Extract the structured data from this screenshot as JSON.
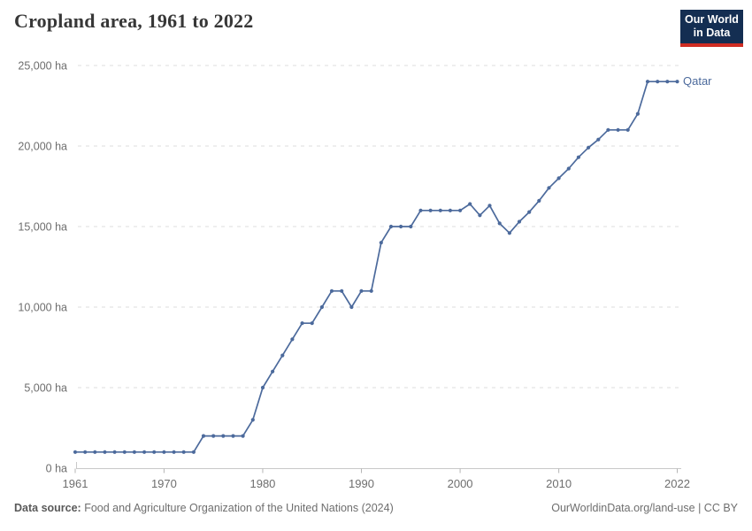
{
  "header": {
    "title": "Cropland area, 1961 to 2022",
    "logo": {
      "line1": "Our World",
      "line2": "in Data"
    }
  },
  "chart_data": {
    "type": "line",
    "title": "Cropland area, 1961 to 2022",
    "unit": "ha",
    "xlim": [
      1961,
      2022
    ],
    "ylim": [
      0,
      25000
    ],
    "grid": "horizontal-dashed",
    "legend_position": "entity label at right end of line",
    "xticks": [
      1961,
      1970,
      1980,
      1990,
      2000,
      2010,
      2022
    ],
    "yticks": [
      0,
      5000,
      10000,
      15000,
      20000,
      25000
    ],
    "ytick_labels": [
      "0 ha",
      "5,000 ha",
      "10,000 ha",
      "15,000 ha",
      "20,000 ha",
      "25,000 ha"
    ],
    "series": [
      {
        "name": "Qatar",
        "color": "#4C6A9C",
        "x": [
          1961,
          1962,
          1963,
          1964,
          1965,
          1966,
          1967,
          1968,
          1969,
          1970,
          1971,
          1972,
          1973,
          1974,
          1975,
          1976,
          1977,
          1978,
          1979,
          1980,
          1981,
          1982,
          1983,
          1984,
          1985,
          1986,
          1987,
          1988,
          1989,
          1990,
          1991,
          1992,
          1993,
          1994,
          1995,
          1996,
          1997,
          1998,
          1999,
          2000,
          2001,
          2002,
          2003,
          2004,
          2005,
          2006,
          2007,
          2008,
          2009,
          2010,
          2011,
          2012,
          2013,
          2014,
          2015,
          2016,
          2017,
          2018,
          2019,
          2020,
          2021,
          2022
        ],
        "values": [
          1000,
          1000,
          1000,
          1000,
          1000,
          1000,
          1000,
          1000,
          1000,
          1000,
          1000,
          1000,
          1000,
          2000,
          2000,
          2000,
          2000,
          2000,
          3000,
          5000,
          6000,
          7000,
          8000,
          9000,
          9000,
          10000,
          11000,
          11000,
          10000,
          11000,
          11000,
          14000,
          15000,
          15000,
          15000,
          16000,
          16000,
          16000,
          16000,
          16000,
          16400,
          15700,
          16300,
          15200,
          14600,
          15300,
          15900,
          16600,
          17400,
          18000,
          18600,
          19300,
          19900,
          20400,
          21000,
          21000,
          21000,
          22000,
          24000,
          24000,
          24000,
          24000
        ]
      }
    ]
  },
  "footer": {
    "source_label": "Data source:",
    "source_text": "Food and Agriculture Organization of the United Nations (2024)",
    "link_text": "OurWorldinData.org/land-use",
    "divider": "|",
    "license_text": "CC BY"
  },
  "colors": {
    "line": "#4C6A9C",
    "grid": "#DEDEDE",
    "axis": "#C9C9C9",
    "tick": "#B5B5B5",
    "axis_text": "#6e6e6e",
    "title_text": "#373737",
    "logo_bg": "#142E52",
    "logo_red": "#CF2D23"
  }
}
